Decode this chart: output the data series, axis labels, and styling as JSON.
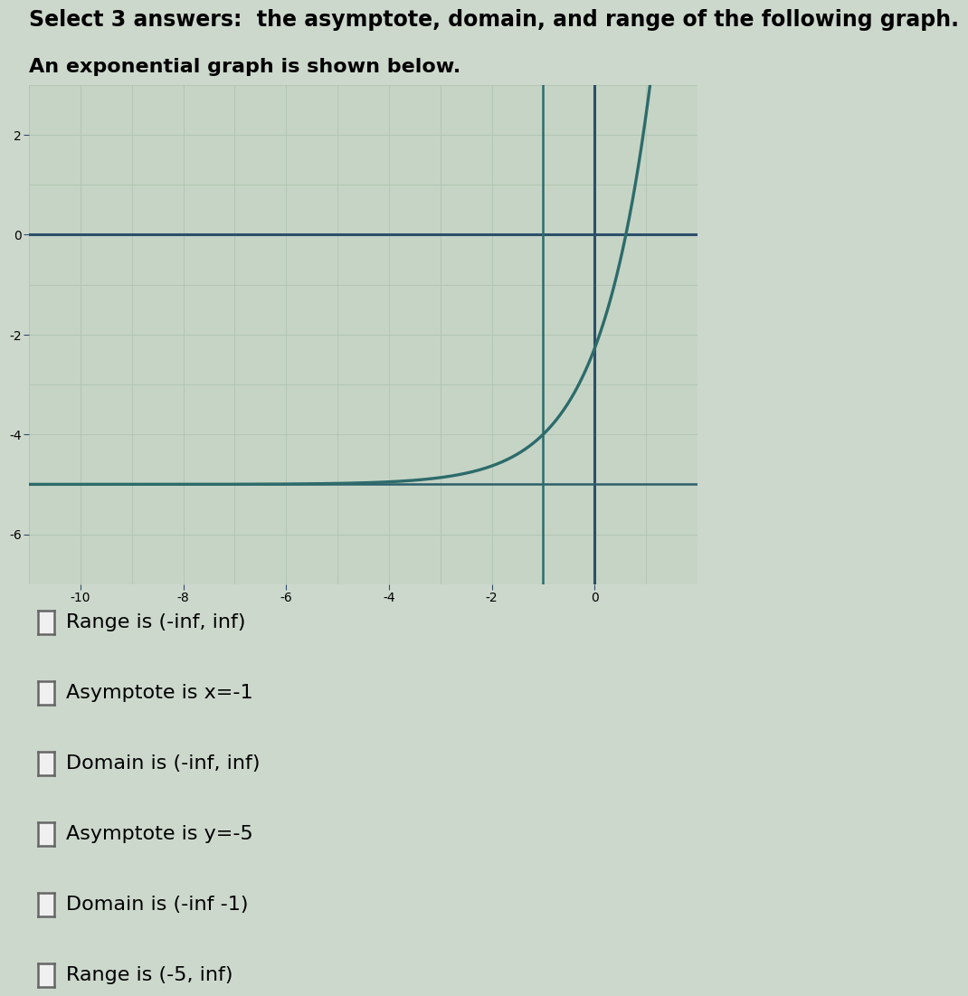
{
  "title": "Select 3 answers:  the asymptote, domain, and range of the following graph.",
  "subtitle": "An exponential graph is shown below.",
  "title_fontsize": 17,
  "subtitle_fontsize": 16,
  "bg_color": "#cdd8cd",
  "graph_bg_color": "#c5d4c5",
  "curve_color": "#2d6b6b",
  "asymptote_color": "#2d5f6b",
  "axis_color": "#2d4f6b",
  "grid_color": "#b0c4b0",
  "xlim": [
    -11,
    2
  ],
  "ylim": [
    -7,
    3
  ],
  "xticks": [
    -10,
    -8,
    -6,
    -4,
    -2,
    0
  ],
  "yticks": [
    -6,
    -4,
    -2,
    0,
    2
  ],
  "xtick_labels": [
    "-10",
    "-8",
    "-6",
    "-4",
    "-2",
    "0"
  ],
  "ytick_labels": [
    "-6",
    "-4",
    "-2",
    "0",
    "2"
  ],
  "asymptote_y": -5,
  "choices": [
    "Range is (-inf, inf)",
    "Asymptote is x=-1",
    "Domain is (-inf, inf)",
    "Asymptote is y=-5",
    "Domain is (-inf -1)",
    "Range is (-5, inf)"
  ],
  "choice_fontsize": 16
}
